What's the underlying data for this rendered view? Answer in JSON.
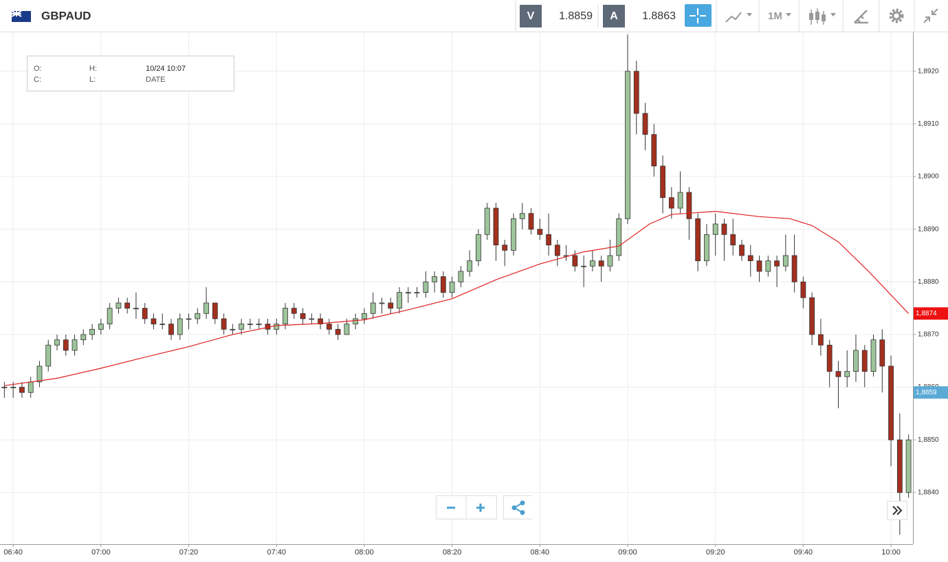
{
  "toolbar": {
    "symbol": "GBPAUD",
    "bid": {
      "label": "V",
      "value": 1.8859
    },
    "ask": {
      "label": "A",
      "value": 1.8863
    },
    "timeframe": "1M"
  },
  "info_box": {
    "rows": [
      [
        "O:",
        "H:",
        "10/24 10:07"
      ],
      [
        "C:",
        "L:",
        "DATE"
      ]
    ]
  },
  "chart_data": {
    "type": "candlestick",
    "up_color": "#9dc49a",
    "down_color": "#a3301f",
    "edge_color": "#333333",
    "grid": true,
    "xlim": [
      "06:37",
      "10:05"
    ],
    "xticks": [
      "06:40",
      "07:00",
      "07:20",
      "07:40",
      "08:00",
      "08:20",
      "08:40",
      "09:00",
      "09:20",
      "09:40",
      "10:00"
    ],
    "ylim": [
      1.88302,
      1.89274
    ],
    "yticks": [
      {
        "value": 1.884,
        "label": "1,8840"
      },
      {
        "value": 1.885,
        "label": "1,8850"
      },
      {
        "value": 1.886,
        "label": "1,8860"
      },
      {
        "value": 1.887,
        "label": "1,8870"
      },
      {
        "value": 1.888,
        "label": "1,8880"
      },
      {
        "value": 1.889,
        "label": "1,8890"
      },
      {
        "value": 1.89,
        "label": "1,8900"
      },
      {
        "value": 1.891,
        "label": "1,8910"
      },
      {
        "value": 1.892,
        "label": "1,8920"
      }
    ],
    "x": [
      "06:38",
      "06:40",
      "06:42",
      "06:44",
      "06:46",
      "06:48",
      "06:50",
      "06:52",
      "06:54",
      "06:56",
      "06:58",
      "07:00",
      "07:02",
      "07:04",
      "07:06",
      "07:08",
      "07:10",
      "07:12",
      "07:14",
      "07:16",
      "07:18",
      "07:20",
      "07:22",
      "07:24",
      "07:26",
      "07:28",
      "07:30",
      "07:32",
      "07:34",
      "07:36",
      "07:38",
      "07:40",
      "07:42",
      "07:44",
      "07:46",
      "07:48",
      "07:50",
      "07:52",
      "07:54",
      "07:56",
      "07:58",
      "08:00",
      "08:02",
      "08:04",
      "08:06",
      "08:08",
      "08:10",
      "08:12",
      "08:14",
      "08:16",
      "08:18",
      "08:20",
      "08:22",
      "08:24",
      "08:26",
      "08:28",
      "08:30",
      "08:32",
      "08:34",
      "08:36",
      "08:38",
      "08:40",
      "08:42",
      "08:44",
      "08:46",
      "08:48",
      "08:50",
      "08:52",
      "08:54",
      "08:56",
      "08:58",
      "09:00",
      "09:02",
      "09:04",
      "09:06",
      "09:08",
      "09:10",
      "09:12",
      "09:14",
      "09:16",
      "09:18",
      "09:20",
      "09:22",
      "09:24",
      "09:26",
      "09:28",
      "09:30",
      "09:32",
      "09:34",
      "09:36",
      "09:38",
      "09:40",
      "09:42",
      "09:44",
      "09:46",
      "09:48",
      "09:50",
      "09:52",
      "09:54",
      "09:56",
      "09:58",
      "10:00",
      "10:02",
      "10:04"
    ],
    "ohlc": [
      [
        1.886,
        1.8861,
        1.8858,
        1.886
      ],
      [
        1.886,
        1.8861,
        1.8858,
        1.886
      ],
      [
        1.886,
        1.8861,
        1.8858,
        1.8859
      ],
      [
        1.8859,
        1.8862,
        1.8858,
        1.8861
      ],
      [
        1.8861,
        1.8865,
        1.886,
        1.8864
      ],
      [
        1.8864,
        1.8869,
        1.8863,
        1.8868
      ],
      [
        1.8868,
        1.887,
        1.8867,
        1.8869
      ],
      [
        1.8869,
        1.887,
        1.8866,
        1.8867
      ],
      [
        1.8867,
        1.887,
        1.8866,
        1.8869
      ],
      [
        1.8869,
        1.8871,
        1.8868,
        1.887
      ],
      [
        1.887,
        1.8872,
        1.8869,
        1.8871
      ],
      [
        1.8871,
        1.8873,
        1.887,
        1.8872
      ],
      [
        1.8872,
        1.8876,
        1.8871,
        1.8875
      ],
      [
        1.8875,
        1.8877,
        1.8874,
        1.8876
      ],
      [
        1.8876,
        1.8877,
        1.8874,
        1.8875
      ],
      [
        1.8875,
        1.8878,
        1.8873,
        1.8875
      ],
      [
        1.8875,
        1.8876,
        1.8872,
        1.8873
      ],
      [
        1.8873,
        1.8874,
        1.8871,
        1.8872
      ],
      [
        1.8872,
        1.8874,
        1.8871,
        1.8872
      ],
      [
        1.8872,
        1.8873,
        1.8869,
        1.887
      ],
      [
        1.887,
        1.8874,
        1.8869,
        1.8873
      ],
      [
        1.8873,
        1.8874,
        1.8871,
        1.8873
      ],
      [
        1.8873,
        1.8875,
        1.8872,
        1.8874
      ],
      [
        1.8874,
        1.8879,
        1.8873,
        1.8876
      ],
      [
        1.8876,
        1.8876,
        1.8872,
        1.8873
      ],
      [
        1.8873,
        1.8874,
        1.887,
        1.8871
      ],
      [
        1.8871,
        1.8872,
        1.887,
        1.8871
      ],
      [
        1.8871,
        1.8873,
        1.887,
        1.8872
      ],
      [
        1.8872,
        1.8873,
        1.8871,
        1.8872
      ],
      [
        1.8872,
        1.8873,
        1.8871,
        1.8872
      ],
      [
        1.8872,
        1.8873,
        1.887,
        1.8871
      ],
      [
        1.8871,
        1.8873,
        1.887,
        1.8872
      ],
      [
        1.8872,
        1.8876,
        1.8871,
        1.8875
      ],
      [
        1.8875,
        1.8876,
        1.8873,
        1.8874
      ],
      [
        1.8874,
        1.8875,
        1.8872,
        1.8873
      ],
      [
        1.8873,
        1.8874,
        1.8872,
        1.8873
      ],
      [
        1.8873,
        1.8874,
        1.8871,
        1.8872
      ],
      [
        1.8872,
        1.8873,
        1.887,
        1.8871
      ],
      [
        1.8871,
        1.8872,
        1.8869,
        1.887
      ],
      [
        1.887,
        1.8873,
        1.887,
        1.8872
      ],
      [
        1.8872,
        1.8874,
        1.8871,
        1.8873
      ],
      [
        1.8873,
        1.8875,
        1.8872,
        1.8874
      ],
      [
        1.8874,
        1.8878,
        1.8873,
        1.8876
      ],
      [
        1.8876,
        1.8877,
        1.8874,
        1.8876
      ],
      [
        1.8876,
        1.8877,
        1.8874,
        1.8875
      ],
      [
        1.8875,
        1.8879,
        1.8874,
        1.8878
      ],
      [
        1.8878,
        1.8879,
        1.8876,
        1.8878
      ],
      [
        1.8878,
        1.8879,
        1.8877,
        1.8878
      ],
      [
        1.8878,
        1.8882,
        1.8877,
        1.888
      ],
      [
        1.888,
        1.8882,
        1.8878,
        1.8881
      ],
      [
        1.8881,
        1.8882,
        1.8877,
        1.8878
      ],
      [
        1.8878,
        1.8881,
        1.8877,
        1.888
      ],
      [
        1.888,
        1.8883,
        1.8879,
        1.8882
      ],
      [
        1.8882,
        1.8886,
        1.8881,
        1.8884
      ],
      [
        1.8884,
        1.889,
        1.8883,
        1.8889
      ],
      [
        1.8889,
        1.8895,
        1.8888,
        1.8894
      ],
      [
        1.8894,
        1.8895,
        1.8884,
        1.8887
      ],
      [
        1.8887,
        1.8888,
        1.8883,
        1.8886
      ],
      [
        1.8886,
        1.8893,
        1.8885,
        1.8892
      ],
      [
        1.8892,
        1.8895,
        1.889,
        1.8893
      ],
      [
        1.8893,
        1.8894,
        1.8889,
        1.889
      ],
      [
        1.889,
        1.8892,
        1.8888,
        1.8889
      ],
      [
        1.8889,
        1.8893,
        1.8885,
        1.8887
      ],
      [
        1.8887,
        1.8888,
        1.8883,
        1.8885
      ],
      [
        1.8885,
        1.8887,
        1.8884,
        1.8885
      ],
      [
        1.8885,
        1.8886,
        1.8882,
        1.8883
      ],
      [
        1.8883,
        1.8885,
        1.8879,
        1.8883
      ],
      [
        1.8883,
        1.8886,
        1.8882,
        1.8884
      ],
      [
        1.8884,
        1.8885,
        1.888,
        1.8883
      ],
      [
        1.8883,
        1.8888,
        1.8882,
        1.8885
      ],
      [
        1.8885,
        1.8893,
        1.8884,
        1.8892
      ],
      [
        1.8892,
        1.8927,
        1.8891,
        1.892
      ],
      [
        1.892,
        1.8922,
        1.8908,
        1.8912
      ],
      [
        1.8912,
        1.8914,
        1.8905,
        1.8908
      ],
      [
        1.8908,
        1.891,
        1.89,
        1.8902
      ],
      [
        1.8902,
        1.8904,
        1.8893,
        1.8896
      ],
      [
        1.8896,
        1.8898,
        1.8892,
        1.8894
      ],
      [
        1.8894,
        1.8901,
        1.8893,
        1.8897
      ],
      [
        1.8897,
        1.8898,
        1.8888,
        1.8892
      ],
      [
        1.8892,
        1.8893,
        1.8882,
        1.8884
      ],
      [
        1.8884,
        1.8891,
        1.8883,
        1.8889
      ],
      [
        1.8889,
        1.8893,
        1.8885,
        1.8891
      ],
      [
        1.8891,
        1.8892,
        1.8884,
        1.8889
      ],
      [
        1.8889,
        1.8892,
        1.8885,
        1.8887
      ],
      [
        1.8887,
        1.8888,
        1.8884,
        1.8885
      ],
      [
        1.8885,
        1.8887,
        1.8881,
        1.8884
      ],
      [
        1.8884,
        1.8885,
        1.888,
        1.8882
      ],
      [
        1.8882,
        1.8885,
        1.8881,
        1.8884
      ],
      [
        1.8884,
        1.8885,
        1.8879,
        1.8883
      ],
      [
        1.8883,
        1.8889,
        1.8882,
        1.8885
      ],
      [
        1.8885,
        1.8889,
        1.8878,
        1.888
      ],
      [
        1.888,
        1.8881,
        1.8875,
        1.8877
      ],
      [
        1.8877,
        1.8878,
        1.8868,
        1.887
      ],
      [
        1.887,
        1.8873,
        1.8866,
        1.8868
      ],
      [
        1.8868,
        1.8869,
        1.886,
        1.8863
      ],
      [
        1.8863,
        1.8865,
        1.8856,
        1.8862
      ],
      [
        1.8862,
        1.8867,
        1.886,
        1.8863
      ],
      [
        1.8863,
        1.887,
        1.8861,
        1.8867
      ],
      [
        1.8867,
        1.8868,
        1.886,
        1.8863
      ],
      [
        1.8863,
        1.887,
        1.8862,
        1.8869
      ],
      [
        1.8869,
        1.8871,
        1.8859,
        1.8864
      ],
      [
        1.8864,
        1.8866,
        1.8845,
        1.885
      ],
      [
        1.885,
        1.8855,
        1.8832,
        1.884
      ],
      [
        1.884,
        1.8851,
        1.8839,
        1.885
      ]
    ],
    "ma": {
      "color": "#e02020",
      "x": [
        "06:38",
        "06:50",
        "07:00",
        "07:10",
        "07:20",
        "07:30",
        "07:40",
        "07:50",
        "08:00",
        "08:10",
        "08:20",
        "08:30",
        "08:40",
        "08:50",
        "08:58",
        "09:05",
        "09:10",
        "09:20",
        "09:30",
        "09:37",
        "09:42",
        "09:48",
        "09:55",
        "10:04"
      ],
      "values": [
        1.88603,
        1.88617,
        1.88636,
        1.88657,
        1.88677,
        1.887,
        1.88717,
        1.88721,
        1.88728,
        1.88747,
        1.88768,
        1.88804,
        1.88834,
        1.88857,
        1.88868,
        1.8891,
        1.88928,
        1.88934,
        1.88924,
        1.8892,
        1.88907,
        1.88876,
        1.88819,
        1.8874
      ]
    },
    "price_tags": [
      {
        "value": 1.8874,
        "label": "1,8874",
        "color": "#ee1111"
      },
      {
        "value": 1.8859,
        "label": "1,8859",
        "color": "#5aaad6"
      }
    ]
  }
}
